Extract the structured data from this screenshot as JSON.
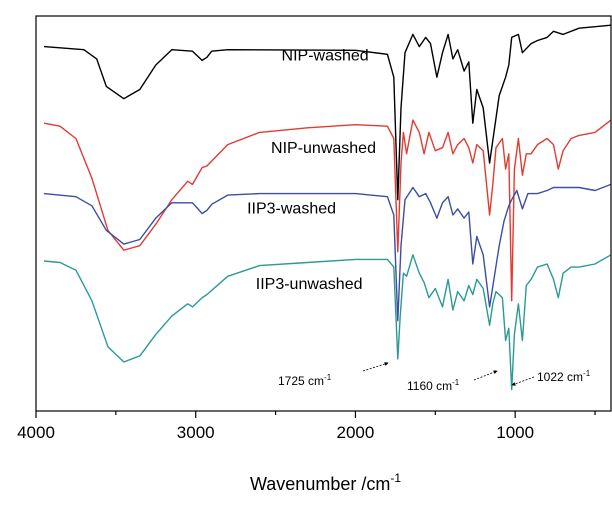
{
  "chart_data": {
    "type": "line",
    "title": "",
    "xlabel": "Wavenumber /cm",
    "xlabel_sup": "-1",
    "ylabel": "",
    "xlim": [
      4000,
      400
    ],
    "x_reversed": true,
    "x_ticks": [
      {
        "value": 4000,
        "label": "4000"
      },
      {
        "value": 3000,
        "label": "3000"
      },
      {
        "value": 2000,
        "label": "2000"
      },
      {
        "value": 1000,
        "label": "1000"
      }
    ],
    "y_units": "transmittance (stacked, offset)",
    "grid": false,
    "series": [
      {
        "name": "NIP-washed",
        "color": "#000000",
        "base": 0.9,
        "points": [
          [
            3950,
            0.9
          ],
          [
            3700,
            0.89
          ],
          [
            3620,
            0.86
          ],
          [
            3560,
            0.77
          ],
          [
            3450,
            0.73
          ],
          [
            3350,
            0.76
          ],
          [
            3250,
            0.84
          ],
          [
            3150,
            0.89
          ],
          [
            3020,
            0.885
          ],
          [
            2960,
            0.855
          ],
          [
            2930,
            0.865
          ],
          [
            2900,
            0.885
          ],
          [
            2800,
            0.89
          ],
          [
            2000,
            0.888
          ],
          [
            1800,
            0.875
          ],
          [
            1760,
            0.8
          ],
          [
            1735,
            0.4
          ],
          [
            1715,
            0.7
          ],
          [
            1690,
            0.88
          ],
          [
            1640,
            0.94
          ],
          [
            1600,
            0.9
          ],
          [
            1560,
            0.93
          ],
          [
            1530,
            0.91
          ],
          [
            1490,
            0.8
          ],
          [
            1455,
            0.88
          ],
          [
            1420,
            0.94
          ],
          [
            1390,
            0.86
          ],
          [
            1360,
            0.89
          ],
          [
            1320,
            0.82
          ],
          [
            1290,
            0.85
          ],
          [
            1265,
            0.65
          ],
          [
            1240,
            0.76
          ],
          [
            1200,
            0.7
          ],
          [
            1160,
            0.52
          ],
          [
            1130,
            0.63
          ],
          [
            1100,
            0.74
          ],
          [
            1060,
            0.8
          ],
          [
            1040,
            0.84
          ],
          [
            1022,
            0.93
          ],
          [
            980,
            0.94
          ],
          [
            955,
            0.88
          ],
          [
            900,
            0.91
          ],
          [
            860,
            0.92
          ],
          [
            800,
            0.93
          ],
          [
            760,
            0.95
          ],
          [
            700,
            0.94
          ],
          [
            600,
            0.96
          ],
          [
            400,
            0.97
          ]
        ]
      },
      {
        "name": "NIP-unwashed",
        "color": "#e33b32",
        "base": 0.65,
        "points": [
          [
            3950,
            0.65
          ],
          [
            3850,
            0.64
          ],
          [
            3750,
            0.6
          ],
          [
            3650,
            0.47
          ],
          [
            3550,
            0.3
          ],
          [
            3450,
            0.235
          ],
          [
            3350,
            0.25
          ],
          [
            3250,
            0.32
          ],
          [
            3150,
            0.4
          ],
          [
            3050,
            0.46
          ],
          [
            3020,
            0.45
          ],
          [
            2960,
            0.505
          ],
          [
            2930,
            0.51
          ],
          [
            2800,
            0.58
          ],
          [
            2600,
            0.62
          ],
          [
            2300,
            0.635
          ],
          [
            2000,
            0.645
          ],
          [
            1800,
            0.64
          ],
          [
            1760,
            0.6
          ],
          [
            1735,
            0.23
          ],
          [
            1715,
            0.52
          ],
          [
            1700,
            0.62
          ],
          [
            1680,
            0.55
          ],
          [
            1640,
            0.66
          ],
          [
            1600,
            0.62
          ],
          [
            1570,
            0.55
          ],
          [
            1540,
            0.62
          ],
          [
            1500,
            0.56
          ],
          [
            1455,
            0.57
          ],
          [
            1420,
            0.62
          ],
          [
            1390,
            0.55
          ],
          [
            1360,
            0.58
          ],
          [
            1320,
            0.6
          ],
          [
            1290,
            0.57
          ],
          [
            1265,
            0.52
          ],
          [
            1240,
            0.58
          ],
          [
            1200,
            0.56
          ],
          [
            1160,
            0.35
          ],
          [
            1140,
            0.45
          ],
          [
            1120,
            0.57
          ],
          [
            1080,
            0.6
          ],
          [
            1060,
            0.5
          ],
          [
            1040,
            0.55
          ],
          [
            1022,
            0.07
          ],
          [
            1005,
            0.5
          ],
          [
            980,
            0.6
          ],
          [
            955,
            0.48
          ],
          [
            930,
            0.55
          ],
          [
            900,
            0.55
          ],
          [
            860,
            0.58
          ],
          [
            800,
            0.6
          ],
          [
            760,
            0.58
          ],
          [
            730,
            0.5
          ],
          [
            700,
            0.56
          ],
          [
            650,
            0.6
          ],
          [
            600,
            0.61
          ],
          [
            500,
            0.62
          ],
          [
            400,
            0.66
          ]
        ]
      },
      {
        "name": "IIP3-washed",
        "color": "#3b4ea3",
        "base": 0.42,
        "points": [
          [
            3950,
            0.42
          ],
          [
            3750,
            0.41
          ],
          [
            3650,
            0.38
          ],
          [
            3560,
            0.3
          ],
          [
            3450,
            0.255
          ],
          [
            3350,
            0.27
          ],
          [
            3250,
            0.34
          ],
          [
            3150,
            0.39
          ],
          [
            3020,
            0.39
          ],
          [
            2960,
            0.355
          ],
          [
            2930,
            0.365
          ],
          [
            2900,
            0.385
          ],
          [
            2800,
            0.415
          ],
          [
            2600,
            0.42
          ],
          [
            2000,
            0.42
          ],
          [
            1800,
            0.41
          ],
          [
            1760,
            0.35
          ],
          [
            1735,
            0.005
          ],
          [
            1715,
            0.25
          ],
          [
            1690,
            0.4
          ],
          [
            1640,
            0.44
          ],
          [
            1600,
            0.41
          ],
          [
            1560,
            0.42
          ],
          [
            1530,
            0.39
          ],
          [
            1490,
            0.34
          ],
          [
            1455,
            0.39
          ],
          [
            1420,
            0.41
          ],
          [
            1390,
            0.35
          ],
          [
            1360,
            0.37
          ],
          [
            1320,
            0.34
          ],
          [
            1290,
            0.36
          ],
          [
            1265,
            0.19
          ],
          [
            1240,
            0.28
          ],
          [
            1200,
            0.22
          ],
          [
            1160,
            0.05
          ],
          [
            1130,
            0.15
          ],
          [
            1100,
            0.25
          ],
          [
            1070,
            0.33
          ],
          [
            1040,
            0.38
          ],
          [
            1022,
            0.4
          ],
          [
            990,
            0.43
          ],
          [
            955,
            0.37
          ],
          [
            920,
            0.42
          ],
          [
            860,
            0.42
          ],
          [
            800,
            0.43
          ],
          [
            760,
            0.44
          ],
          [
            700,
            0.44
          ],
          [
            600,
            0.44
          ],
          [
            500,
            0.43
          ],
          [
            400,
            0.45
          ]
        ]
      },
      {
        "name": "IIP3-unwashed",
        "color": "#2a9a93",
        "base": 0.2,
        "points": [
          [
            3950,
            0.2
          ],
          [
            3850,
            0.195
          ],
          [
            3750,
            0.17
          ],
          [
            3650,
            0.07
          ],
          [
            3550,
            -0.08
          ],
          [
            3450,
            -0.13
          ],
          [
            3350,
            -0.11
          ],
          [
            3250,
            -0.04
          ],
          [
            3150,
            0.02
          ],
          [
            3050,
            0.06
          ],
          [
            3020,
            0.05
          ],
          [
            2960,
            0.08
          ],
          [
            2930,
            0.09
          ],
          [
            2800,
            0.15
          ],
          [
            2600,
            0.185
          ],
          [
            2300,
            0.195
          ],
          [
            2000,
            0.205
          ],
          [
            1800,
            0.205
          ],
          [
            1760,
            0.18
          ],
          [
            1735,
            -0.12
          ],
          [
            1720,
            0.02
          ],
          [
            1700,
            0.16
          ],
          [
            1680,
            0.15
          ],
          [
            1640,
            0.22
          ],
          [
            1600,
            0.16
          ],
          [
            1570,
            0.13
          ],
          [
            1540,
            0.08
          ],
          [
            1500,
            0.11
          ],
          [
            1455,
            0.05
          ],
          [
            1420,
            0.14
          ],
          [
            1390,
            0.04
          ],
          [
            1360,
            0.1
          ],
          [
            1320,
            0.07
          ],
          [
            1290,
            0.12
          ],
          [
            1265,
            0.09
          ],
          [
            1240,
            0.14
          ],
          [
            1200,
            0.11
          ],
          [
            1160,
            -0.01
          ],
          [
            1140,
            0.06
          ],
          [
            1120,
            0.1
          ],
          [
            1080,
            0.08
          ],
          [
            1060,
            -0.06
          ],
          [
            1040,
            -0.02
          ],
          [
            1022,
            -0.22
          ],
          [
            1005,
            -0.04
          ],
          [
            980,
            0.06
          ],
          [
            955,
            -0.06
          ],
          [
            930,
            0.12
          ],
          [
            900,
            0.14
          ],
          [
            860,
            0.18
          ],
          [
            800,
            0.19
          ],
          [
            760,
            0.14
          ],
          [
            730,
            0.08
          ],
          [
            700,
            0.16
          ],
          [
            650,
            0.18
          ],
          [
            600,
            0.18
          ],
          [
            500,
            0.19
          ],
          [
            400,
            0.22
          ]
        ]
      }
    ],
    "series_labels": [
      {
        "series": 0,
        "text": "NIP-washed",
        "at_x": 2190
      },
      {
        "series": 1,
        "text": "NIP-unwashed",
        "at_x": 2200
      },
      {
        "series": 2,
        "text": "IIP3-washed",
        "at_x": 2400
      },
      {
        "series": 3,
        "text": "IIP3-unwashed",
        "at_x": 2290
      }
    ],
    "annotations": [
      {
        "text": "1725 cm",
        "sup": "-1",
        "peak": 1725
      },
      {
        "text": "1160 cm",
        "sup": "-1",
        "peak": 1160
      },
      {
        "text": "1022 cm",
        "sup": "-1",
        "peak": 1022
      }
    ]
  }
}
